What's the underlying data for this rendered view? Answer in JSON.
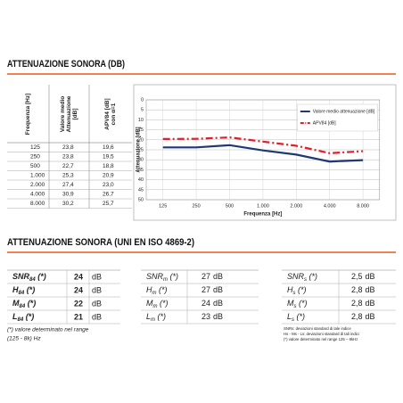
{
  "title_1": "ATTENUAZIONE SONORA (DB)",
  "freq_table": {
    "headers": [
      [
        "Frequenza [Hz]"
      ],
      [
        "Valore medio",
        "Attenuazione",
        "[dB]"
      ],
      [
        "APV84 [dB]",
        "con α=1"
      ]
    ],
    "rows": [
      [
        "125",
        "23,8",
        "19,6"
      ],
      [
        "250",
        "23,8",
        "19,5"
      ],
      [
        "500",
        "22,7",
        "18,8"
      ],
      [
        "1.000",
        "25,3",
        "20,9"
      ],
      [
        "2.000",
        "27,4",
        "23,0"
      ],
      [
        "4.000",
        "30,9",
        "26,7"
      ],
      [
        "8.000",
        "30,2",
        "25,7"
      ]
    ]
  },
  "chart_data": {
    "type": "line",
    "y_label": "Attenuazione [dB]",
    "x_label": "Frequenza [Hz]",
    "categories": [
      "125",
      "250",
      "500",
      "1.000",
      "2.000",
      "4.000",
      "8.000"
    ],
    "series": [
      {
        "name": "Valore medio attenuazione [dB]",
        "color": "#1f3a73",
        "dash": "solid",
        "values": [
          23.8,
          23.8,
          22.7,
          25.3,
          27.4,
          30.9,
          30.2
        ]
      },
      {
        "name": "APV84 [dB]",
        "color": "#e0202a",
        "dash": "dashdot",
        "values": [
          19.6,
          19.5,
          18.8,
          20.9,
          23.0,
          26.7,
          25.7
        ]
      }
    ],
    "ylim": [
      0,
      50
    ],
    "y_reversed": true,
    "yticks": [
      0,
      5,
      10,
      15,
      20,
      25,
      30,
      35,
      40,
      45,
      50
    ],
    "grid": true,
    "legend": "top-right"
  },
  "title_2": "ATTENUAZIONE SONORA (UNI EN ISO 4869-2)",
  "index_tables": [
    {
      "label_bold": true,
      "rows": [
        {
          "main": "SNR",
          "sub": "84",
          "mark": " (*)",
          "value": "24",
          "unit": "dB"
        },
        {
          "main": "H",
          "sub": "84",
          "mark": " (*)",
          "value": "24",
          "unit": "dB"
        },
        {
          "main": "M",
          "sub": "84",
          "mark": " (*)",
          "value": "22",
          "unit": "dB"
        },
        {
          "main": "L",
          "sub": "84",
          "mark": " (*)",
          "value": "21",
          "unit": "dB"
        }
      ]
    },
    {
      "label_bold": false,
      "rows": [
        {
          "main": "SNR",
          "sub": "m",
          "mark": " (*)",
          "value": "27",
          "unit": "dB"
        },
        {
          "main": "H",
          "sub": "m",
          "mark": " (*)",
          "value": "27",
          "unit": "dB"
        },
        {
          "main": "M",
          "sub": "m",
          "mark": " (*)",
          "value": "24",
          "unit": "dB"
        },
        {
          "main": "L",
          "sub": "m",
          "mark": " (*)",
          "value": "23",
          "unit": "dB"
        }
      ]
    },
    {
      "label_bold": false,
      "rows": [
        {
          "main": "SNR",
          "sub": "s",
          "mark": " (*)",
          "value": "2,5",
          "unit": "dB"
        },
        {
          "main": "H",
          "sub": "s",
          "mark": " (*)",
          "value": "2,8",
          "unit": "dB"
        },
        {
          "main": "M",
          "sub": "s",
          "mark": " (*)",
          "value": "2,8",
          "unit": "dB"
        },
        {
          "main": "L",
          "sub": "s",
          "mark": " (*)",
          "value": "2,8",
          "unit": "dB"
        }
      ]
    }
  ],
  "note_left": [
    "(*) valore determinato nel range",
    "(125 - 8k) Hz"
  ],
  "note_right": [
    "SNRs: deviazioni standard di tale indice",
    "Hs - Ms - Ls: deviazioni standard di tali indici",
    "(*) valore determinato nel range 125 – 8kHz"
  ]
}
